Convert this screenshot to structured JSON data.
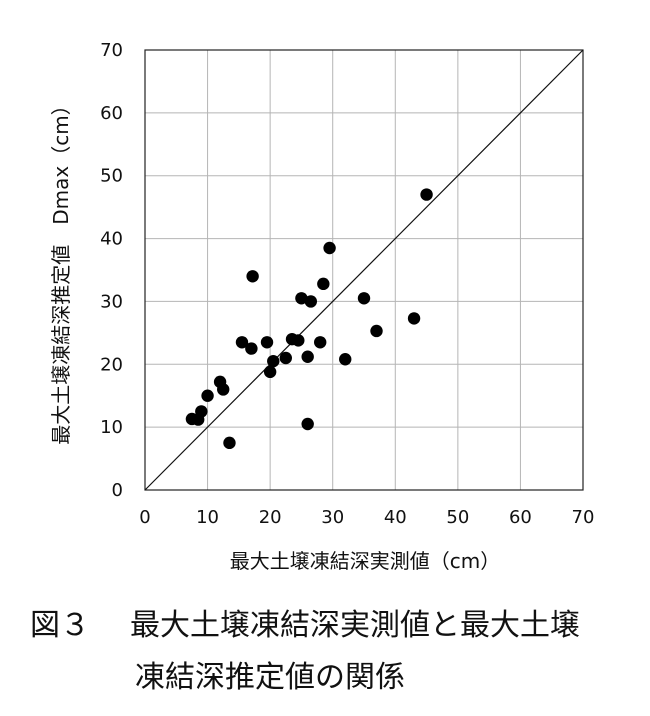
{
  "chart_data": {
    "type": "scatter",
    "xlabel": "最大土壌凍結深実測値（cm）",
    "ylabel": "最大土壌凍結深推定値　Dmax（cm）",
    "xlim": [
      0,
      70
    ],
    "ylim": [
      0,
      70
    ],
    "x_ticks": [
      "0",
      "10",
      "20",
      "30",
      "40",
      "50",
      "60",
      "70"
    ],
    "y_ticks": [
      "0",
      "10",
      "20",
      "30",
      "40",
      "50",
      "60",
      "70"
    ],
    "grid": true,
    "reference_line": {
      "type": "1:1",
      "from": [
        0,
        0
      ],
      "to": [
        70,
        70
      ]
    },
    "points": [
      {
        "x": 7.5,
        "y": 11.3
      },
      {
        "x": 8.5,
        "y": 11.2
      },
      {
        "x": 9.0,
        "y": 12.5
      },
      {
        "x": 10.0,
        "y": 15.0
      },
      {
        "x": 12.0,
        "y": 17.2
      },
      {
        "x": 12.5,
        "y": 16.0
      },
      {
        "x": 13.5,
        "y": 7.5
      },
      {
        "x": 15.5,
        "y": 23.5
      },
      {
        "x": 17.0,
        "y": 22.5
      },
      {
        "x": 17.2,
        "y": 34.0
      },
      {
        "x": 19.5,
        "y": 23.5
      },
      {
        "x": 20.0,
        "y": 18.8
      },
      {
        "x": 20.5,
        "y": 20.5
      },
      {
        "x": 22.5,
        "y": 21.0
      },
      {
        "x": 23.5,
        "y": 24.0
      },
      {
        "x": 24.5,
        "y": 23.8
      },
      {
        "x": 25.0,
        "y": 30.5
      },
      {
        "x": 26.0,
        "y": 21.2
      },
      {
        "x": 26.0,
        "y": 10.5
      },
      {
        "x": 26.5,
        "y": 30.0
      },
      {
        "x": 28.0,
        "y": 23.5
      },
      {
        "x": 28.5,
        "y": 32.8
      },
      {
        "x": 29.5,
        "y": 38.5
      },
      {
        "x": 32.0,
        "y": 20.8
      },
      {
        "x": 35.0,
        "y": 30.5
      },
      {
        "x": 37.0,
        "y": 25.3
      },
      {
        "x": 43.0,
        "y": 27.3
      },
      {
        "x": 45.0,
        "y": 47.0
      }
    ],
    "point_color": "#000000"
  },
  "caption": {
    "label": "図３",
    "line1": "最大土壌凍結深実測値と最大土壌",
    "line2": "凍結深推定値の関係"
  }
}
